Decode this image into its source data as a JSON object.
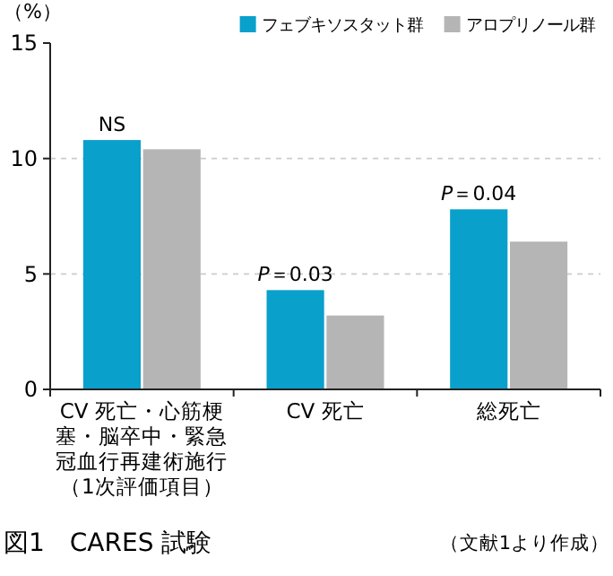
{
  "chart_data": {
    "type": "bar",
    "title": "図1　CARES 試験",
    "ylabel": "（%）",
    "categories": [
      "CV 死亡・心筋梗塞・脳卒中・緊急冠血行再建術施行（1次評価項目）",
      "CV 死亡",
      "総死亡"
    ],
    "series": [
      {
        "name": "フェブキソスタット群",
        "color": "#0aa0cc",
        "values": [
          10.8,
          4.3,
          7.8
        ]
      },
      {
        "name": "アロプリノール群",
        "color": "#b5b5b5",
        "values": [
          10.4,
          3.2,
          6.4
        ]
      }
    ],
    "ylim": [
      0,
      15
    ],
    "yticks": [
      0,
      5,
      10,
      15
    ],
    "grid": "y",
    "legend": "top right",
    "annotations": [
      {
        "text": "NS",
        "x": "CV 死亡・心筋梗塞・脳卒中・緊急冠血行再建術施行（1次評価項目）",
        "y": 10.8
      },
      {
        "text": "P＝0.03",
        "x": "CV 死亡",
        "y": 4.3
      },
      {
        "text": "P＝0.04",
        "x": "総死亡",
        "y": 7.8
      },
      "（文献1より作成）"
    ]
  }
}
